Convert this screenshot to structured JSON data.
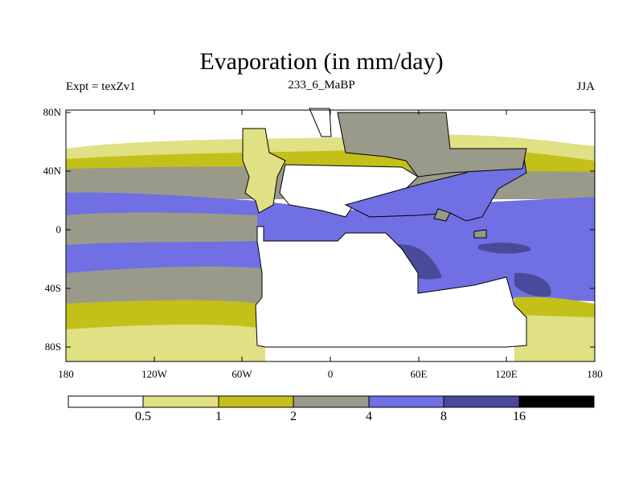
{
  "title": "Evaporation (in mm/day)",
  "experiment": "Expt = texZv1",
  "subtitle": "233_6_MaBP",
  "season": "JJA",
  "lat_labels": [
    "80N",
    "40N",
    "0",
    "40S",
    "80S"
  ],
  "lon_labels": [
    "180",
    "120W",
    "60W",
    "0",
    "60E",
    "120E",
    "180"
  ],
  "colorbar": {
    "colors": [
      "#ffffff",
      "#e0e084",
      "#c4c01a",
      "#9a9a8a",
      "#7070e4",
      "#4a4a9a",
      "#000000"
    ],
    "labels": [
      "0.5",
      "1",
      "2",
      "4",
      "8",
      "16"
    ]
  },
  "map": {
    "land_color": "#ffffff",
    "zonal_bands_colors": [
      "#e0e084",
      "#c4c01a",
      "#9a9a8a",
      "#7070e4",
      "#4a4a9a"
    ]
  }
}
